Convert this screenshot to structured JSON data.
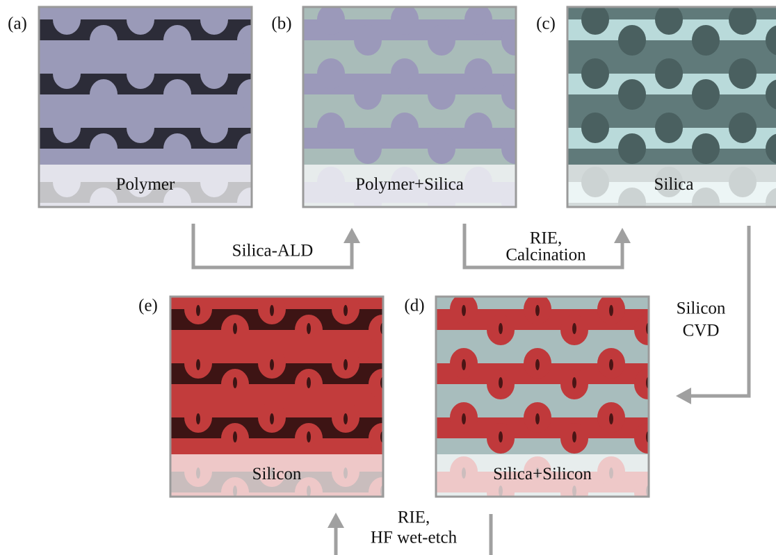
{
  "panels": [
    {
      "letter": "(a)",
      "caption": "Polymer"
    },
    {
      "letter": "(b)",
      "caption": "Polymer+Silica"
    },
    {
      "letter": "(c)",
      "caption": "Silica"
    },
    {
      "letter": "(d)",
      "caption": "Silica+Silicon"
    },
    {
      "letter": "(e)",
      "caption": "Silicon"
    }
  ],
  "steps": [
    {
      "lines": [
        "Silica-ALD"
      ]
    },
    {
      "lines": [
        "RIE,",
        "Calcination"
      ]
    },
    {
      "lines": [
        "Silicon",
        "CVD"
      ]
    },
    {
      "lines": [
        "RIE,",
        "HF wet-etch"
      ]
    }
  ]
}
